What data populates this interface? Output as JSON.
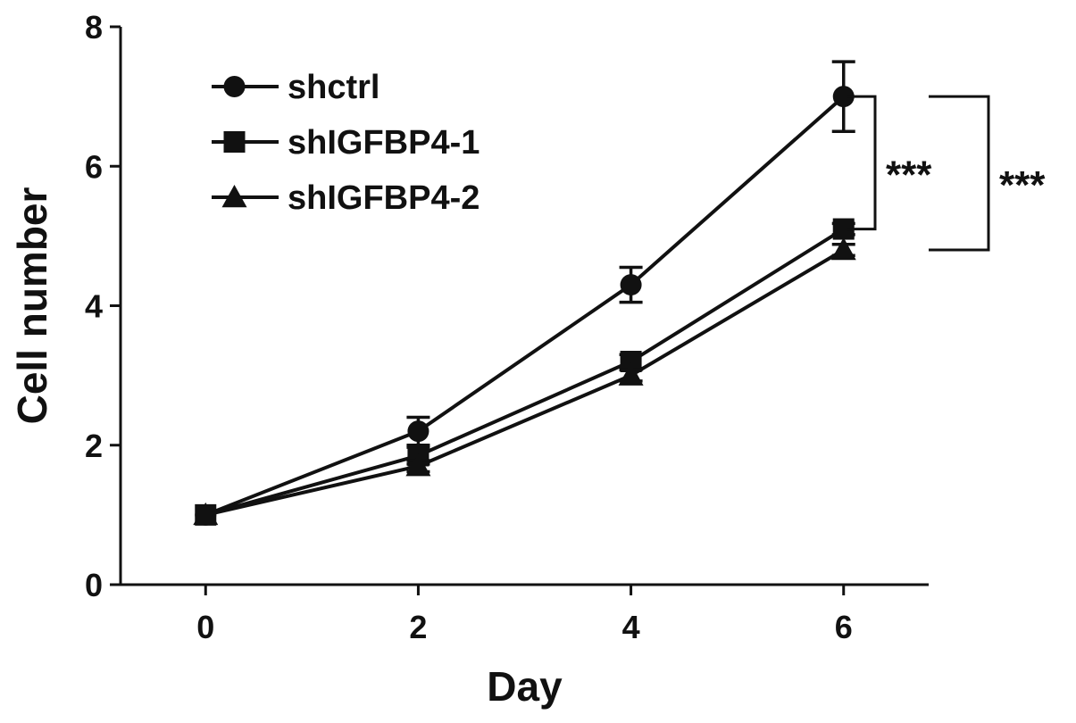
{
  "chart_data": {
    "type": "line",
    "title": "",
    "xlabel": "Day",
    "ylabel": "Cell number",
    "x": [
      0,
      2,
      4,
      6
    ],
    "xlim": [
      -0.8,
      6.8
    ],
    "ylim": [
      0,
      8
    ],
    "xticks": [
      "0",
      "2",
      "4",
      "6"
    ],
    "yticks": [
      "0",
      "2",
      "4",
      "6",
      "8"
    ],
    "grid": false,
    "legend_position": "top-left",
    "series": [
      {
        "name": "shctrl",
        "marker": "circle",
        "values": [
          1.0,
          2.2,
          4.3,
          7.0
        ],
        "errors": [
          0.0,
          0.2,
          0.25,
          0.5
        ]
      },
      {
        "name": "shIGFBP4-1",
        "marker": "square",
        "values": [
          1.0,
          1.85,
          3.2,
          5.1
        ],
        "errors": [
          0.0,
          0.12,
          0.1,
          0.08
        ]
      },
      {
        "name": "shIGFBP4-2",
        "marker": "triangle",
        "values": [
          1.0,
          1.7,
          3.0,
          4.8
        ],
        "errors": [
          0.0,
          0.08,
          0.08,
          0.08
        ]
      }
    ],
    "annotations": [
      {
        "text": "***",
        "from_series": "shctrl",
        "to_series": "shIGFBP4-1",
        "y_top": 7.0,
        "y_bottom": 5.1
      },
      {
        "text": "***",
        "from_series": "shctrl",
        "to_series": "shIGFBP4-2",
        "y_top": 7.0,
        "y_bottom": 4.8
      }
    ]
  }
}
